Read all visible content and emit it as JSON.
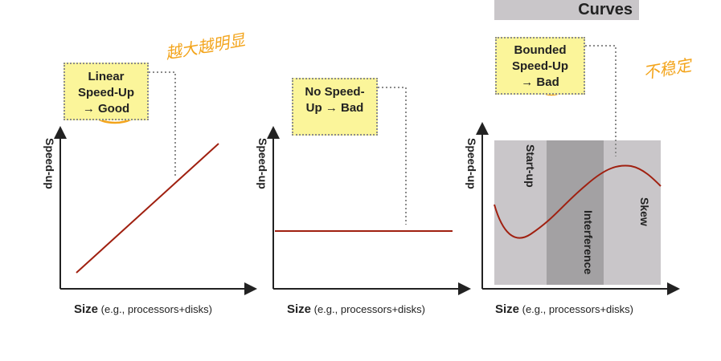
{
  "header": {
    "title": "Curves"
  },
  "annotations": {
    "left": "越大越明显",
    "right": "不稳定"
  },
  "panels": [
    {
      "ylabel": "Speed-up",
      "xlabel_bold": "Size",
      "xlabel_rest": " (e.g., processors+disks)",
      "callout": {
        "line1": "Linear",
        "line2": "Speed-Up",
        "arrow": "→",
        "verdict": "Good"
      }
    },
    {
      "ylabel": "Speed-up",
      "xlabel_bold": "Size",
      "xlabel_rest": " (e.g., processors+disks)",
      "callout": {
        "line1": "No Speed-",
        "line2_pre": "Up ",
        "arrow": "→",
        "verdict": "Bad"
      }
    },
    {
      "ylabel": "Speed-up",
      "xlabel_bold": "Size",
      "xlabel_rest": " (e.g., processors+disks)",
      "callout": {
        "line1": "Bounded",
        "line2": "Speed-Up",
        "arrow": "→",
        "verdict": "Bad"
      },
      "regions": [
        "Start-up",
        "Interference",
        "Skew"
      ]
    }
  ],
  "colors": {
    "curve": "#a02010",
    "axis": "#222222",
    "callout_fill": "#fbf59a",
    "region_light": "#c9c6c9",
    "region_dark": "#a3a1a3",
    "highlight": "#f3a41b"
  }
}
